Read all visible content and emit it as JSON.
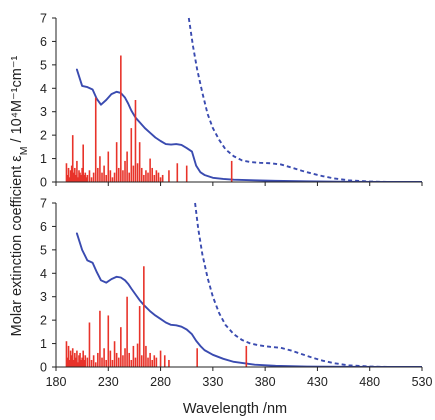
{
  "chart_data": {
    "type": "line",
    "xlabel": "Wavelength  /nm",
    "ylabel": "Molar extinction coefficient  εM / 10⁴M⁻¹cm⁻¹",
    "ylabel_parts": {
      "prefix": "Molar extinction coefficient  ε",
      "sub": "M",
      "suffix": " / 10⁴M⁻¹cm⁻¹"
    },
    "xlim": [
      180,
      530
    ],
    "x_ticks": [
      180,
      230,
      280,
      330,
      380,
      430,
      480,
      530
    ],
    "ylim": [
      0,
      7
    ],
    "y_ticks": [
      0,
      1,
      2,
      3,
      4,
      5,
      6,
      7
    ],
    "colors": {
      "experimental": "#3a4bb0",
      "sticks": "#e8332a",
      "axes": "#222222"
    },
    "panels": [
      {
        "id": "top",
        "series": [
          {
            "style": "solid",
            "x": [
              200,
              205,
              210,
              215,
              219,
              223,
              228,
              233,
              238,
              242,
              246,
              249,
              252,
              256,
              260,
              265,
              270,
              275,
              280,
              285,
              290,
              295,
              300,
              305,
              310,
              314,
              318,
              322,
              330,
              340,
              350,
              370,
              390,
              420,
              460,
              500,
              530
            ],
            "y": [
              4.8,
              4.1,
              4.05,
              3.95,
              3.55,
              3.3,
              3.5,
              3.75,
              3.85,
              3.8,
              3.6,
              3.35,
              3.05,
              2.75,
              2.55,
              2.3,
              2.1,
              1.9,
              1.75,
              1.62,
              1.6,
              1.62,
              1.58,
              1.45,
              1.3,
              0.7,
              0.42,
              0.3,
              0.18,
              0.13,
              0.1,
              0.07,
              0.05,
              0.03,
              0.01,
              0.0,
              0.0
            ]
          },
          {
            "style": "dashed",
            "x": [
              307,
              311,
              315,
              320,
              325,
              330,
              336,
              342,
              350,
              358,
              366,
              375,
              385,
              395,
              405,
              415,
              425,
              435,
              445,
              460,
              480,
              500,
              530
            ],
            "y": [
              7.0,
              5.8,
              4.8,
              3.8,
              2.9,
              2.3,
              1.8,
              1.4,
              1.1,
              0.92,
              0.85,
              0.82,
              0.8,
              0.75,
              0.62,
              0.48,
              0.36,
              0.25,
              0.16,
              0.07,
              0.02,
              0.0,
              0.0
            ]
          },
          {
            "style": "sticks",
            "x": [
              190,
              191,
              192,
              193,
              194,
              195,
              196,
              197,
              198,
              199,
              200,
              201,
              202,
              203,
              204,
              205,
              206,
              207,
              208,
              209,
              210,
              212,
              214,
              216,
              218,
              220,
              222,
              224,
              226,
              228,
              230,
              232,
              234,
              236,
              238,
              240,
              242,
              244,
              246,
              248,
              250,
              252,
              254,
              256,
              258,
              260,
              262,
              264,
              266,
              268,
              270,
              272,
              274,
              276,
              278,
              280,
              282,
              288,
              296,
              305,
              348
            ],
            "y": [
              0.8,
              0.3,
              0.6,
              0.2,
              0.5,
              0.7,
              2.0,
              0.4,
              0.6,
              0.3,
              0.9,
              0.2,
              0.5,
              0.4,
              0.3,
              0.6,
              1.6,
              0.3,
              0.4,
              0.2,
              0.3,
              0.5,
              0.2,
              0.4,
              3.6,
              0.6,
              1.1,
              0.4,
              0.7,
              0.3,
              1.3,
              0.5,
              0.2,
              0.4,
              1.7,
              0.6,
              5.4,
              0.5,
              0.9,
              1.3,
              0.4,
              2.3,
              0.7,
              3.5,
              0.8,
              1.7,
              0.6,
              0.3,
              0.5,
              0.4,
              1.0,
              0.6,
              0.3,
              0.5,
              0.4,
              0.2,
              0.3,
              0.5,
              0.8,
              0.7,
              0.9
            ]
          }
        ]
      },
      {
        "id": "bottom",
        "series": [
          {
            "style": "solid",
            "x": [
              200,
              205,
              210,
              215,
              219,
              223,
              228,
              233,
              238,
              242,
              246,
              249,
              252,
              256,
              260,
              265,
              270,
              275,
              280,
              285,
              290,
              295,
              300,
              305,
              310,
              314,
              318,
              322,
              330,
              340,
              350,
              370,
              390,
              420,
              460,
              500,
              530
            ],
            "y": [
              5.7,
              5.0,
              4.55,
              4.45,
              4.05,
              3.7,
              3.6,
              3.75,
              3.85,
              3.82,
              3.7,
              3.55,
              3.35,
              3.1,
              2.85,
              2.6,
              2.38,
              2.2,
              2.05,
              1.9,
              1.8,
              1.78,
              1.72,
              1.6,
              1.4,
              1.12,
              0.9,
              0.72,
              0.52,
              0.35,
              0.22,
              0.1,
              0.05,
              0.02,
              0.01,
              0.0,
              0.0
            ]
          },
          {
            "style": "dashed",
            "x": [
              313,
              316,
              320,
              325,
              330,
              336,
              342,
              350,
              358,
              366,
              375,
              385,
              395,
              405,
              415,
              425,
              435,
              445,
              460,
              480,
              500,
              530
            ],
            "y": [
              7.0,
              5.9,
              4.8,
              3.8,
              3.0,
              2.3,
              1.8,
              1.4,
              1.15,
              1.0,
              0.92,
              0.86,
              0.82,
              0.7,
              0.55,
              0.4,
              0.27,
              0.17,
              0.07,
              0.02,
              0.0,
              0.0
            ]
          },
          {
            "style": "sticks",
            "x": [
              190,
              191,
              192,
              193,
              194,
              195,
              196,
              197,
              198,
              199,
              200,
              201,
              202,
              203,
              204,
              205,
              206,
              207,
              208,
              210,
              212,
              214,
              216,
              218,
              220,
              222,
              224,
              226,
              228,
              230,
              232,
              234,
              236,
              238,
              240,
              242,
              244,
              246,
              248,
              250,
              252,
              254,
              256,
              258,
              260,
              262,
              264,
              266,
              268,
              270,
              272,
              274,
              276,
              280,
              284,
              288,
              315,
              362
            ],
            "y": [
              1.1,
              0.4,
              0.9,
              0.3,
              0.7,
              0.5,
              0.8,
              0.3,
              0.6,
              0.4,
              0.7,
              0.2,
              0.5,
              0.6,
              0.3,
              0.4,
              0.7,
              0.3,
              0.5,
              0.4,
              1.9,
              0.3,
              0.5,
              0.2,
              0.6,
              2.4,
              0.4,
              0.8,
              0.3,
              2.2,
              0.7,
              0.3,
              1.1,
              0.6,
              0.4,
              1.7,
              0.5,
              0.8,
              3.0,
              0.6,
              0.3,
              0.9,
              0.4,
              1.0,
              2.6,
              0.5,
              4.3,
              0.9,
              0.4,
              0.6,
              0.3,
              0.5,
              0.4,
              0.7,
              0.5,
              0.3,
              0.8,
              0.9
            ]
          }
        ]
      }
    ]
  }
}
